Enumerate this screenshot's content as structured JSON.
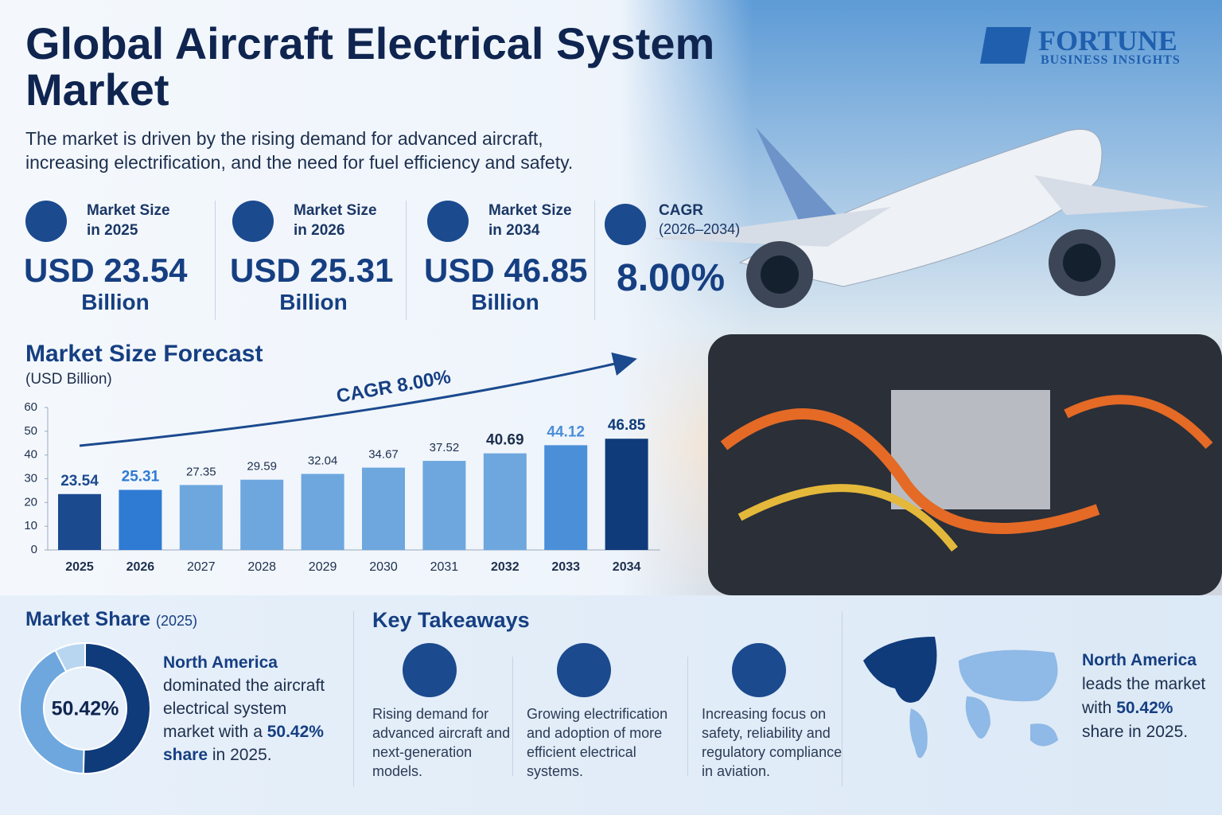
{
  "header": {
    "title": "Global Aircraft Electrical System Market",
    "subtitle": "The market is driven by the rising demand for advanced aircraft, increasing electrification, and the need for fuel efficiency and safety.",
    "logo": {
      "name": "FORTUNE",
      "tagline": "BUSINESS INSIGHTS"
    }
  },
  "stats": [
    {
      "label": "Market Size in 2025",
      "value": "USD 23.54",
      "unit": "Billion"
    },
    {
      "label": "Market Size in 2026",
      "value": "USD 25.31",
      "unit": "Billion"
    },
    {
      "label": "Market Size in 2034",
      "value": "USD 46.85",
      "unit": "Billion"
    }
  ],
  "cagr": {
    "label": "CAGR",
    "period": "(2026–2034)",
    "value": "8.00%"
  },
  "chart_data": {
    "type": "bar",
    "title": "Market Size Forecast",
    "subtitle": "(USD Billion)",
    "annotation": "CAGR 8.00%",
    "categories": [
      "2025",
      "2026",
      "2027",
      "2028",
      "2029",
      "2030",
      "2031",
      "2032",
      "2033",
      "2034"
    ],
    "values": [
      23.54,
      25.31,
      27.35,
      29.59,
      32.04,
      34.67,
      37.52,
      40.69,
      44.12,
      46.85
    ],
    "colors": [
      "#1b4a8e",
      "#2f7ad3",
      "#6ea7de",
      "#6ea7de",
      "#6ea7de",
      "#6ea7de",
      "#6ea7de",
      "#6ea7de",
      "#4b8fd9",
      "#0f3b7a"
    ],
    "ylim": [
      0,
      60
    ],
    "yticks": [
      0,
      10,
      20,
      30,
      40,
      50,
      60
    ]
  },
  "market_share": {
    "title": "Market Share",
    "year": "(2025)",
    "donut_label": "50.42%",
    "segments": [
      {
        "value": 50.42,
        "color": "#0f3b7a"
      },
      {
        "value": 42,
        "color": "#6ea7de"
      },
      {
        "value": 7.58,
        "color": "#b9d6f1"
      }
    ],
    "region": "North America",
    "text_before": "dominated the aircraft electrical system market with a",
    "highlight": "50.42% share",
    "text_after": "in 2025."
  },
  "takeaways": {
    "title": "Key Takeaways",
    "items": [
      "Rising demand for advanced aircraft and next-generation models.",
      "Growing electrification and adoption of more efficient electrical systems.",
      "Increasing focus on safety, reliability and regulatory compliance in aviation."
    ]
  },
  "map": {
    "region": "North America",
    "line1": "leads the market",
    "line2_before": "with",
    "highlight": "50.42%",
    "line3": "share in 2025."
  }
}
